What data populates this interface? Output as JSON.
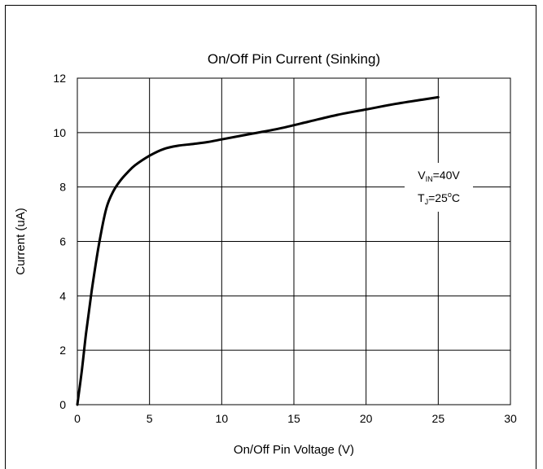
{
  "chart_data": {
    "type": "line",
    "title": "On/Off Pin Current (Sinking)",
    "xlabel": "On/Off Pin Voltage (V)",
    "ylabel": "Current (uA)",
    "xlim": [
      0,
      30
    ],
    "ylim": [
      0,
      12
    ],
    "xticks": [
      "0",
      "5",
      "10",
      "15",
      "20",
      "25",
      "30"
    ],
    "yticks": [
      "0",
      "2",
      "4",
      "6",
      "8",
      "10",
      "12"
    ],
    "grid": true,
    "legend": "none",
    "series": [
      {
        "color": "#000000",
        "x": [
          0,
          0.3,
          0.6,
          1.0,
          1.5,
          2.0,
          2.5,
          3.0,
          3.5,
          4.0,
          5.0,
          6.0,
          7.0,
          8.0,
          9.0,
          10.0,
          12.0,
          14.0,
          16.0,
          18.0,
          20.0,
          22.0,
          24.0,
          25.0
        ],
        "y": [
          0,
          1.2,
          2.6,
          4.2,
          5.9,
          7.2,
          7.85,
          8.25,
          8.55,
          8.8,
          9.15,
          9.4,
          9.52,
          9.58,
          9.65,
          9.75,
          9.95,
          10.15,
          10.4,
          10.65,
          10.85,
          11.05,
          11.22,
          11.3
        ]
      }
    ],
    "annotations": {
      "line1": {
        "main": "V",
        "sub": "IN",
        "rest": "=40V"
      },
      "line2": {
        "main": "T",
        "sub": "J",
        "mid": "=25",
        "sup": "o",
        "rest": "C"
      }
    }
  }
}
